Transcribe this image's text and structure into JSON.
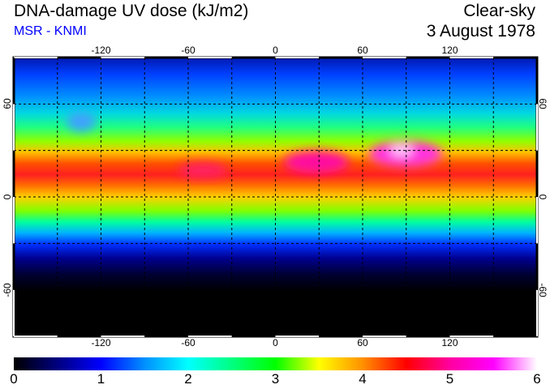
{
  "header": {
    "title": "DNA-damage UV dose (kJ/m2)",
    "source": "MSR - KNMI",
    "mode": "Clear-sky",
    "date": "3 August 1978"
  },
  "map": {
    "lon_ticks": [
      "-120",
      "-60",
      "0",
      "60",
      "120"
    ],
    "lat_ticks": [
      "60",
      "0",
      "-60"
    ],
    "lon_values": [
      -120,
      -60,
      0,
      60,
      120
    ],
    "lat_values": [
      60,
      0,
      -60
    ]
  },
  "colorbar": {
    "labels": [
      "0",
      "1",
      "2",
      "3",
      "4",
      "5",
      "6"
    ],
    "min": 0,
    "max": 6,
    "colors": [
      "#000000",
      "#000080",
      "#0000ff",
      "#0090ff",
      "#00ffff",
      "#00ff80",
      "#00ff00",
      "#ffff00",
      "#ff9000",
      "#ff0000",
      "#ff00a0",
      "#ff00ff",
      "#ffffff"
    ]
  }
}
